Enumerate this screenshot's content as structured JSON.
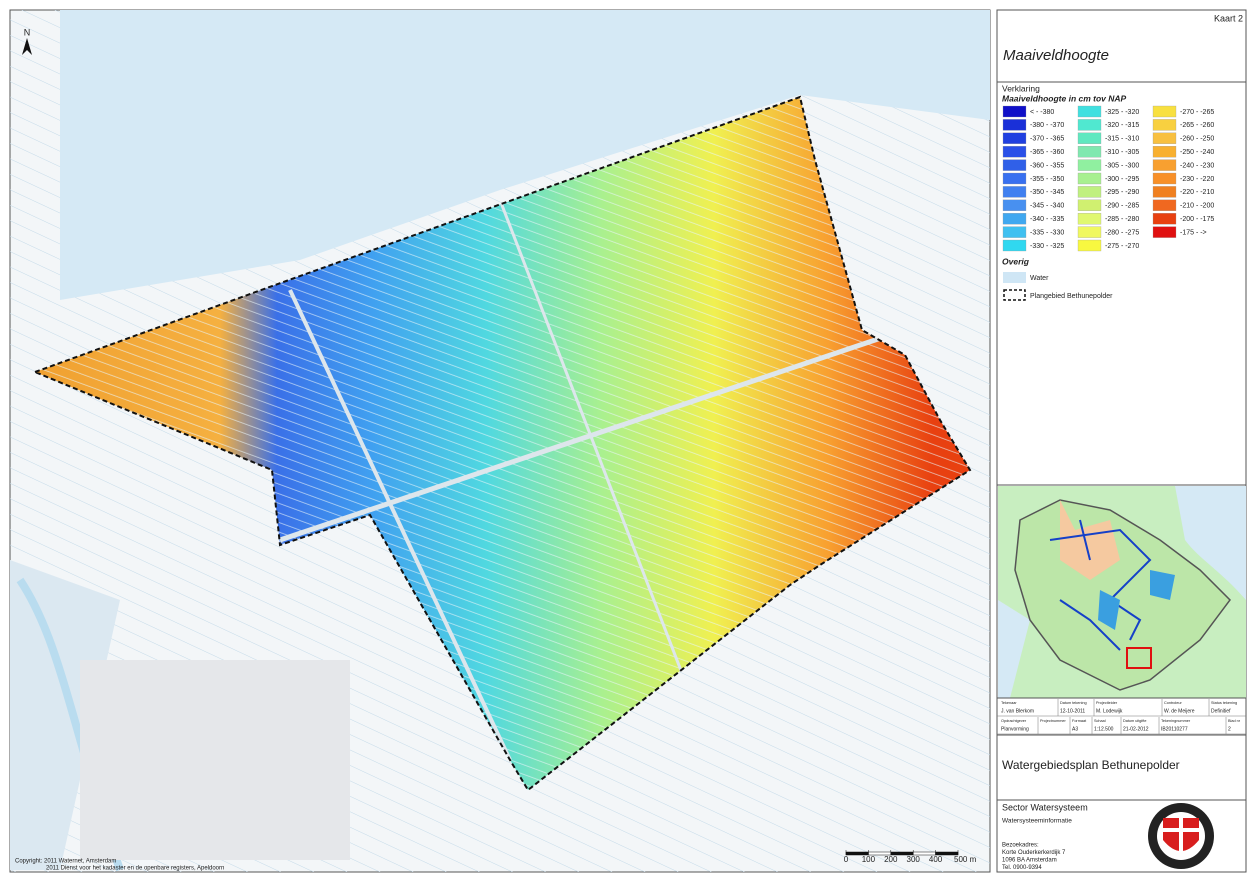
{
  "map": {
    "north": "N",
    "copyright": [
      "Copyright: 2011 Waternet, Amsterdam",
      "2011 Dienst voor het kadaster en de openbare registers, Apeldoorn"
    ],
    "scale_ticks": [
      0,
      100,
      200,
      300,
      400,
      {
        "value": 500,
        "label": "500 m"
      }
    ]
  },
  "header": {
    "sheet": "Kaart 2",
    "title": "Maaiveldhoogte"
  },
  "legend": {
    "heading": "Verklaring",
    "subtitle": "Maaiveldhoogte in cm tov NAP",
    "classes": [
      {
        "label": "< - -380",
        "color": "#1010c8"
      },
      {
        "label": "-380 - -370",
        "color": "#1a30d8"
      },
      {
        "label": "-370 - -365",
        "color": "#2040e0"
      },
      {
        "label": "-365 - -360",
        "color": "#2a50e8"
      },
      {
        "label": "-360 - -355",
        "color": "#3060e8"
      },
      {
        "label": "-355 - -350",
        "color": "#3870f0"
      },
      {
        "label": "-350 - -345",
        "color": "#4080f0"
      },
      {
        "label": "-345 - -340",
        "color": "#4890f0"
      },
      {
        "label": "-340 - -335",
        "color": "#40a8f0"
      },
      {
        "label": "-335 - -330",
        "color": "#40c0f0"
      },
      {
        "label": "-330 - -325",
        "color": "#30d8f0"
      },
      {
        "label": "-325 - -320",
        "color": "#40e0e0"
      },
      {
        "label": "-320 - -315",
        "color": "#50e8d0"
      },
      {
        "label": "-315 - -310",
        "color": "#60e8c0"
      },
      {
        "label": "-310 - -305",
        "color": "#80e8b0"
      },
      {
        "label": "-305 - -300",
        "color": "#90f0a0"
      },
      {
        "label": "-300 - -295",
        "color": "#a8f090"
      },
      {
        "label": "-295 - -290",
        "color": "#c0f080"
      },
      {
        "label": "-290 - -285",
        "color": "#d0f070"
      },
      {
        "label": "-285 - -280",
        "color": "#e0f870"
      },
      {
        "label": "-280 - -275",
        "color": "#f0f860"
      },
      {
        "label": "-275 - -270",
        "color": "#f8f840"
      },
      {
        "label": "-270 - -265",
        "color": "#f8e040"
      },
      {
        "label": "-265 - -260",
        "color": "#f8d040"
      },
      {
        "label": "-260 - -250",
        "color": "#f8c040"
      },
      {
        "label": "-250 - -240",
        "color": "#f8b030"
      },
      {
        "label": "-240 - -230",
        "color": "#f8a030"
      },
      {
        "label": "-230 - -220",
        "color": "#f89028"
      },
      {
        "label": "-220 - -210",
        "color": "#f08020"
      },
      {
        "label": "-210 - -200",
        "color": "#f06820"
      },
      {
        "label": "-200 - -175",
        "color": "#e84010"
      },
      {
        "label": "-175 - ->",
        "color": "#e01010"
      }
    ],
    "other_heading": "Overig",
    "other": [
      {
        "label": "Water"
      },
      {
        "label": "Plangebied Bethunepolder"
      }
    ]
  },
  "info_table": {
    "rows": [
      [
        {
          "head": "Tekenaar",
          "value": "J. van Blerkom"
        },
        {
          "head": "Datum tekening",
          "value": "12-10-2011"
        },
        {
          "head": "Projectleider",
          "value": "M. Lodewijk"
        },
        {
          "head": "Controleur",
          "value": "W. de Meijere"
        },
        {
          "head": "Status tekening",
          "value": "Definitief"
        }
      ],
      [
        {
          "head": "Opdrachtgever",
          "value": "Planvorming"
        },
        {
          "head": "Projectnummer"
        },
        {
          "head": "Formaat",
          "value": "A3"
        },
        {
          "head": "Schaal",
          "value": "1:12.500"
        },
        {
          "head": "Datum uitgifte",
          "value": "21-02-2012"
        },
        {
          "head": "Tekeningnummer",
          "value": "IB20110277"
        },
        {
          "head": "Blad nr",
          "value": "2"
        }
      ]
    ]
  },
  "project": "Watergebiedsplan Bethunepolder",
  "footer": {
    "title": "Sector Watersysteem",
    "subtitle": "Watersysteeminformatie",
    "address": [
      "Bezoekadres:",
      "Korte Ouderkerkerdijk 7",
      "1096 BA Amsterdam",
      "Tel. 0900-9394"
    ]
  }
}
